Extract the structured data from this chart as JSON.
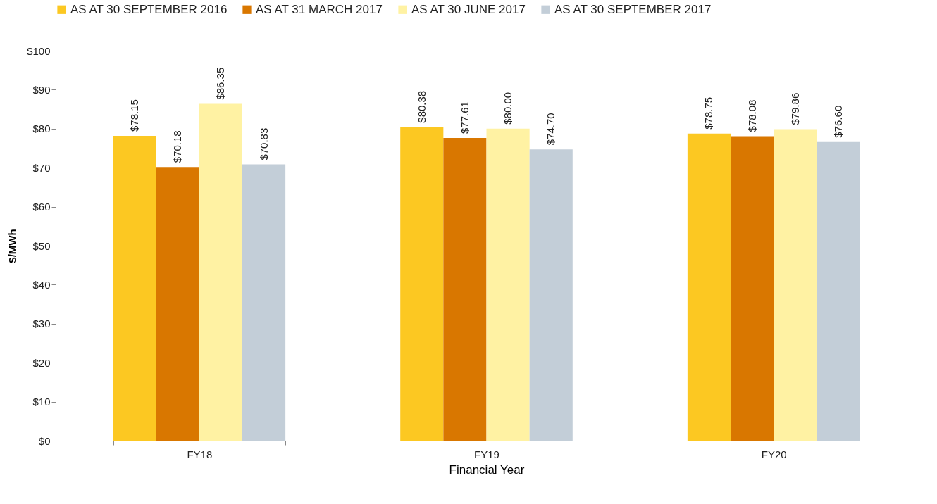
{
  "chart_data": {
    "type": "bar",
    "xlabel": "Financial Year",
    "ylabel": "$/MWh",
    "categories": [
      "FY18",
      "FY19",
      "FY20"
    ],
    "ylim": [
      0,
      100
    ],
    "yticks": [
      {
        "value": 0,
        "label": "$0"
      },
      {
        "value": 10,
        "label": "$10"
      },
      {
        "value": 20,
        "label": "$20"
      },
      {
        "value": 30,
        "label": "$30"
      },
      {
        "value": 40,
        "label": "$40"
      },
      {
        "value": 50,
        "label": "$50"
      },
      {
        "value": 60,
        "label": "$60"
      },
      {
        "value": 70,
        "label": "$70"
      },
      {
        "value": 80,
        "label": "$80"
      },
      {
        "value": 90,
        "label": "$90"
      },
      {
        "value": 100,
        "label": "$100"
      }
    ],
    "grid": false,
    "legend": "top",
    "series": [
      {
        "name": "AS AT 30 SEPTEMBER 2016",
        "color": "#fcc822",
        "values": [
          78.15,
          80.38,
          78.75
        ],
        "value_labels": [
          "$78.15",
          "$80.38",
          "$78.75"
        ]
      },
      {
        "name": "AS AT 31 MARCH 2017",
        "color": "#d97700",
        "values": [
          70.18,
          77.61,
          78.08
        ],
        "value_labels": [
          "$70.18",
          "$77.61",
          "$78.08"
        ]
      },
      {
        "name": "AS AT 30 JUNE 2017",
        "color": "#fff2a3",
        "values": [
          86.35,
          80.0,
          79.86
        ],
        "value_labels": [
          "$86.35",
          "$80.00",
          "$79.86"
        ]
      },
      {
        "name": "AS AT 30 SEPTEMBER 2017",
        "color": "#c3ced8",
        "values": [
          70.83,
          74.7,
          76.6
        ],
        "value_labels": [
          "$70.83",
          "$74.70",
          "$76.60"
        ]
      }
    ]
  }
}
